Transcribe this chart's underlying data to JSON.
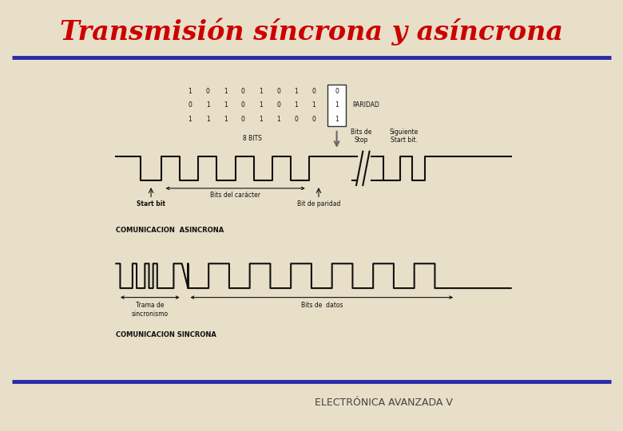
{
  "title": "Transmisión síncrona y asíncrona",
  "title_color": "#cc0000",
  "title_fontsize": 24,
  "footer_text": "ELECTRÓNICA AVANZADA V",
  "footer_color": "#444444",
  "footer_fontsize": 9,
  "bg_color": "#e8dfc8",
  "panel_color": "#f5f2ec",
  "line_color": "#2a2aaa",
  "line_width": 3.5,
  "signal_color": "#111111",
  "paridad_label": "PARIDAD",
  "bits8_label": "8 BITS",
  "async_label": "COMUNICACION  ASINCRONA",
  "sync_label": "COMUNICACION SINCRONA",
  "start_bit_label": "Start bit",
  "bits_caracter_label": "Bits del carácter",
  "bit_paridad_label": "Bit de paridad",
  "bits_stop_label": "Bits de\nStop",
  "siguiente_label": "Siguiente\nStart bit.",
  "trama_label": "Trama de\nsincronismo",
  "bits_datos_label": "Bits de  datos"
}
